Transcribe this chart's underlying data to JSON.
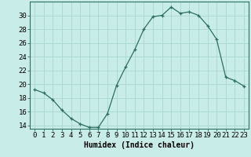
{
  "x": [
    0,
    1,
    2,
    3,
    4,
    5,
    6,
    7,
    8,
    9,
    10,
    11,
    12,
    13,
    14,
    15,
    16,
    17,
    18,
    19,
    20,
    21,
    22,
    23
  ],
  "y": [
    19.2,
    18.7,
    17.7,
    16.2,
    15.0,
    14.2,
    13.7,
    13.7,
    15.7,
    19.8,
    22.5,
    25.0,
    28.0,
    29.8,
    30.0,
    31.2,
    30.3,
    30.5,
    30.0,
    28.5,
    26.5,
    21.0,
    20.5,
    19.7
  ],
  "line_color": "#2d6e63",
  "marker": "+",
  "marker_size": 3,
  "bg_color": "#c8ede8",
  "grid_color": "#a8d8d0",
  "xlabel": "Humidex (Indice chaleur)",
  "ylim": [
    13.5,
    32
  ],
  "xlim": [
    -0.5,
    23.5
  ],
  "yticks": [
    14,
    16,
    18,
    20,
    22,
    24,
    26,
    28,
    30
  ],
  "xticks": [
    0,
    1,
    2,
    3,
    4,
    5,
    6,
    7,
    8,
    9,
    10,
    11,
    12,
    13,
    14,
    15,
    16,
    17,
    18,
    19,
    20,
    21,
    22,
    23
  ],
  "xlabel_fontsize": 7,
  "tick_fontsize": 6.5
}
